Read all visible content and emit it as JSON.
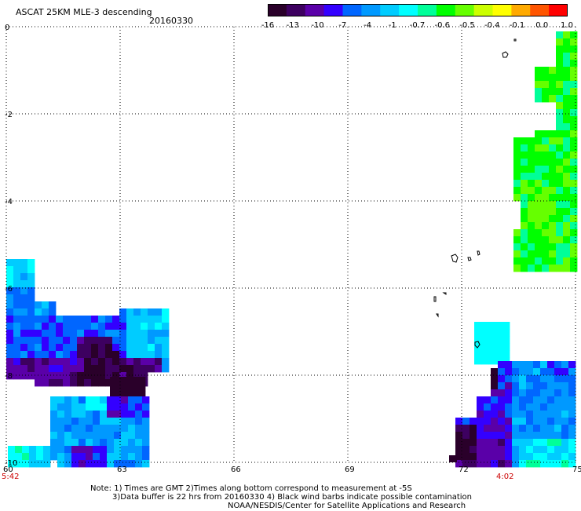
{
  "header": {
    "title": "ASCAT 25KM MLE-3 descending",
    "date": "20160330"
  },
  "colorbar": {
    "labels": [
      "-16",
      "-13",
      "-10",
      "-7",
      "-4",
      "-1",
      "-0.7",
      "-0.6",
      "-0.5",
      "-0.4",
      "-0.1",
      "0.0",
      "1.0"
    ],
    "stops": [
      "#2a002a",
      "#3d0060",
      "#5a00a8",
      "#3300ff",
      "#0066ff",
      "#0099ff",
      "#00ccff",
      "#00ffff",
      "#00ff99",
      "#00ff00",
      "#66ff00",
      "#ccff00",
      "#ffff00",
      "#ffaa00",
      "#ff5500",
      "#ff0000"
    ]
  },
  "axes": {
    "lon_ticks": [
      "60",
      "63",
      "66",
      "69",
      "72",
      "75"
    ],
    "lat_ticks": [
      "0",
      "-2",
      "-4",
      "-6",
      "-8",
      "-10"
    ],
    "time_start": "5:42",
    "time_end": "4:02",
    "time_color": "#cc0000",
    "lon_range": [
      60,
      75
    ],
    "lat_range": [
      -10,
      0
    ]
  },
  "notes": {
    "line1": "Note: 1) Times are GMT 2)Times along bottom correspond to measurement at -5S",
    "line2": "3)Data buffer is 22 hrs from 20160330 4) Black wind barbs indicate possible contamination",
    "line3": "NOAA/NESDIS/Center for Satellite Applications and Research"
  }
}
